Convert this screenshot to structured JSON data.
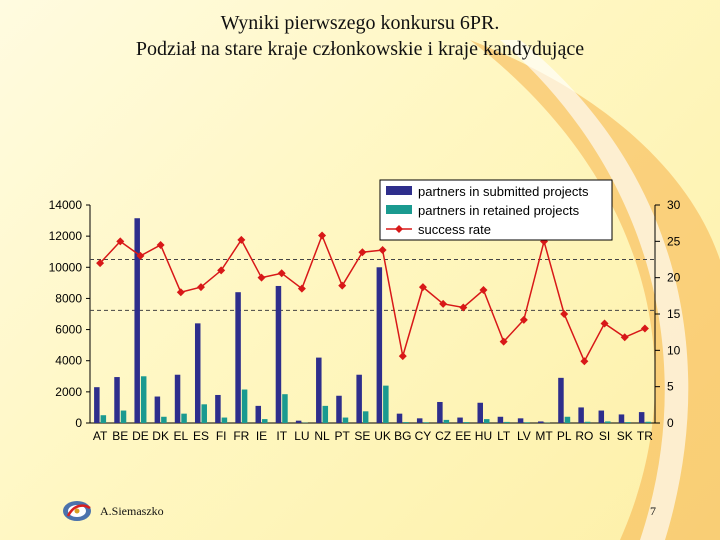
{
  "slide": {
    "title_line1": "Wyniki pierwszego konkursu 6PR.",
    "title_line2": "Podział na stare kraje członkowskie i kraje kandydujące",
    "author": "A.Siemaszko",
    "page_number": "7"
  },
  "colors": {
    "submitted": "#2e2e8c",
    "retained": "#1a9a90",
    "success_line": "#d81818",
    "accent_swoosh": "#f5a623"
  },
  "chart_data": {
    "type": "bar",
    "categories": [
      "AT",
      "BE",
      "DE",
      "DK",
      "EL",
      "ES",
      "FI",
      "FR",
      "IE",
      "IT",
      "LU",
      "NL",
      "PT",
      "SE",
      "UK",
      "BG",
      "CY",
      "CZ",
      "EE",
      "HU",
      "LT",
      "LV",
      "MT",
      "PL",
      "RO",
      "SI",
      "SK",
      "TR"
    ],
    "series": [
      {
        "name": "partners in submitted projects",
        "axis": "left",
        "values": [
          2300,
          2950,
          13150,
          1700,
          3100,
          6400,
          1800,
          8400,
          1100,
          8800,
          150,
          4200,
          1750,
          3100,
          10000,
          600,
          300,
          1350,
          350,
          1300,
          400,
          300,
          100,
          2900,
          1000,
          800,
          550,
          700
        ]
      },
      {
        "name": "partners in retained projects",
        "axis": "left",
        "values": [
          500,
          800,
          3000,
          400,
          600,
          1200,
          350,
          2150,
          250,
          1850,
          20,
          1100,
          350,
          750,
          2400,
          60,
          50,
          200,
          60,
          250,
          70,
          50,
          20,
          400,
          80,
          100,
          60,
          80
        ]
      },
      {
        "name": "success rate",
        "axis": "right",
        "type": "line",
        "values": [
          22,
          25,
          23,
          24.5,
          18,
          18.7,
          21,
          25.2,
          20,
          20.6,
          18.5,
          25.8,
          18.9,
          23.5,
          23.8,
          9.2,
          18.7,
          16.4,
          15.9,
          18.3,
          11.2,
          14.2,
          25,
          15,
          8.5,
          13.7,
          11.8,
          13
        ]
      }
    ],
    "y_left": {
      "min": 0,
      "max": 14000,
      "ticks": [
        0,
        2000,
        4000,
        6000,
        8000,
        10000,
        12000,
        14000
      ]
    },
    "y_right": {
      "min": 0,
      "max": 30,
      "ticks": [
        0,
        5,
        10,
        15,
        20,
        25,
        30
      ]
    },
    "reference_lines_right": [
      22.5,
      15.5
    ],
    "legend_position": "top-right"
  }
}
